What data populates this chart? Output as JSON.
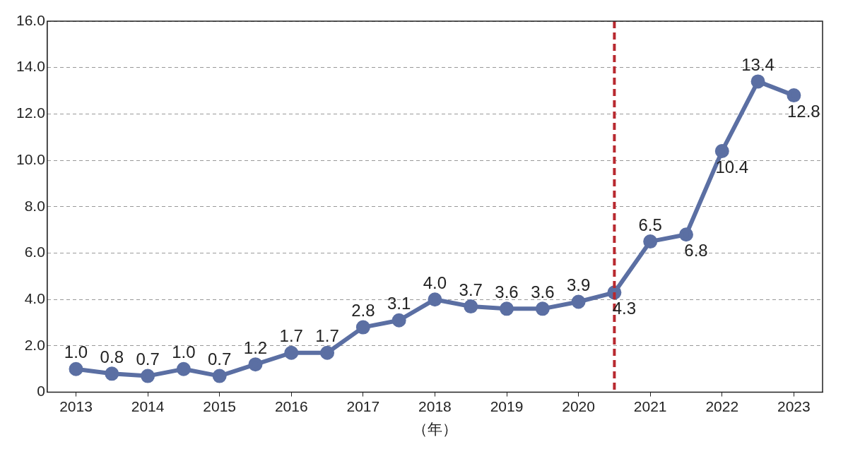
{
  "chart_data": {
    "type": "line",
    "xlabel": "（年）",
    "x": [
      2013,
      2013.5,
      2014,
      2014.5,
      2015,
      2015.5,
      2016,
      2016.5,
      2017,
      2017.5,
      2018,
      2018.5,
      2019,
      2019.5,
      2020,
      2020.5,
      2021,
      2021.5,
      2022,
      2022.5,
      2023
    ],
    "series": [
      {
        "color": "#5b6fa3",
        "values": [
          1.0,
          0.8,
          0.7,
          1.0,
          0.7,
          1.2,
          1.7,
          1.7,
          2.8,
          3.1,
          4.0,
          3.7,
          3.6,
          3.6,
          3.9,
          4.3,
          6.5,
          6.8,
          10.4,
          13.4,
          12.8
        ],
        "value_labels": [
          "1.0",
          "0.8",
          "0.7",
          "1.0",
          "0.7",
          "1.2",
          "1.7",
          "1.7",
          "2.8",
          "3.1",
          "4.0",
          "3.7",
          "3.6",
          "3.6",
          "3.9",
          "4.3",
          "6.5",
          "6.8",
          "10.4",
          "13.4",
          "12.8"
        ]
      }
    ],
    "xlim": [
      2012.6,
      2023.4
    ],
    "xticks": [
      2013,
      2014,
      2015,
      2016,
      2017,
      2018,
      2019,
      2020,
      2021,
      2022,
      2023
    ],
    "ylim": [
      0,
      16
    ],
    "yticks": [
      {
        "value": 0,
        "label": "0"
      },
      {
        "value": 2,
        "label": "2.0"
      },
      {
        "value": 4,
        "label": "4.0"
      },
      {
        "value": 6,
        "label": "6.0"
      },
      {
        "value": 8,
        "label": "8.0"
      },
      {
        "value": 10,
        "label": "10.0"
      },
      {
        "value": 12,
        "label": "12.0"
      },
      {
        "value": 14,
        "label": "14.0"
      },
      {
        "value": 16,
        "label": "16.0"
      }
    ],
    "ref_lines": [
      {
        "axis": "x",
        "value": 2020.5,
        "color": "#b8292f",
        "line_style": "dashed"
      }
    ],
    "grid": "y",
    "marker": "circle",
    "line_style": "solid",
    "legend": false
  }
}
